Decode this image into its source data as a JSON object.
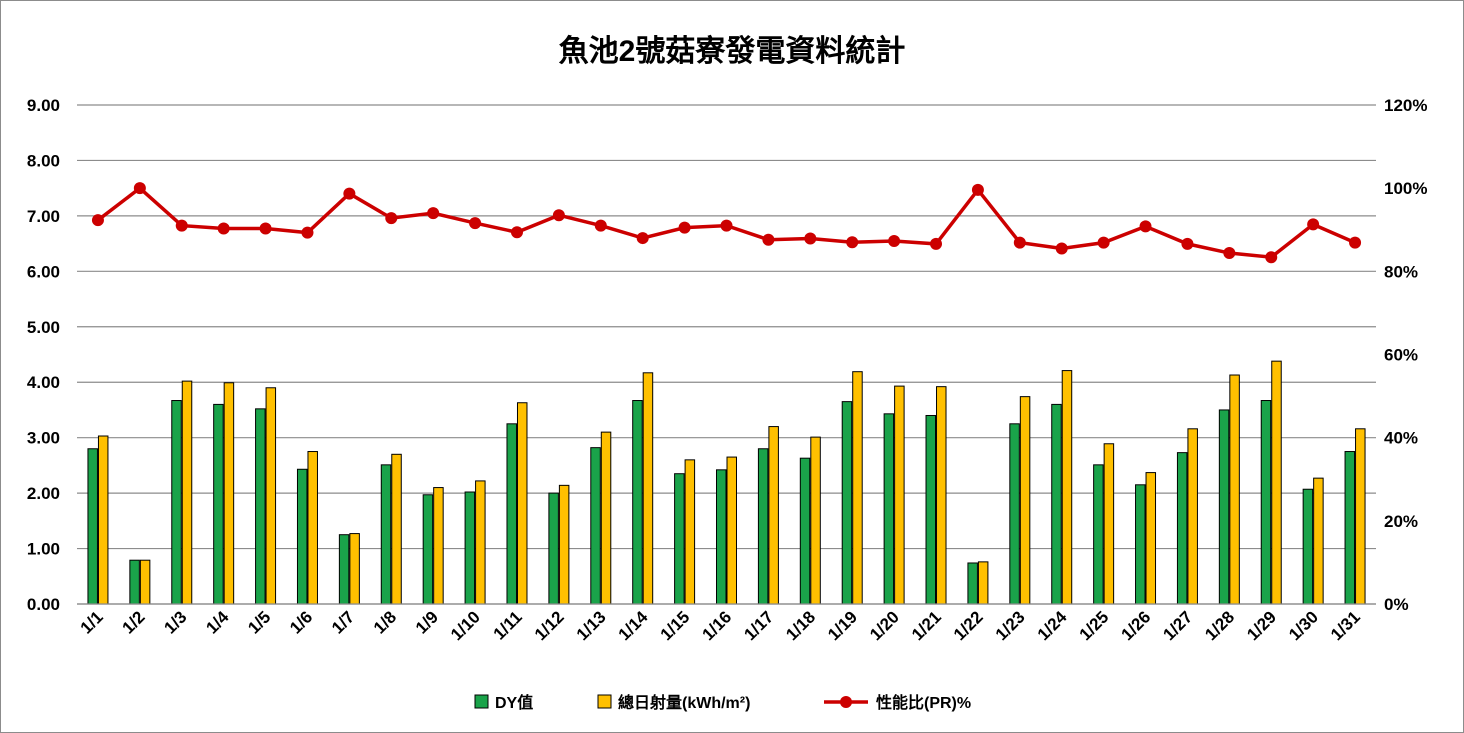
{
  "chart_data": {
    "type": "bar",
    "title": "魚池2號菇寮發電資料統計",
    "categories": [
      "1/1",
      "1/2",
      "1/3",
      "1/4",
      "1/5",
      "1/6",
      "1/7",
      "1/8",
      "1/9",
      "1/10",
      "1/11",
      "1/12",
      "1/13",
      "1/14",
      "1/15",
      "1/16",
      "1/17",
      "1/18",
      "1/19",
      "1/20",
      "1/21",
      "1/22",
      "1/23",
      "1/24",
      "1/25",
      "1/26",
      "1/27",
      "1/28",
      "1/29",
      "1/30",
      "1/31"
    ],
    "series": [
      {
        "name": "DY值",
        "type": "bar",
        "axis": "left",
        "color": "#1aa34a",
        "values": [
          2.8,
          0.79,
          3.67,
          3.6,
          3.52,
          2.43,
          1.25,
          2.51,
          1.97,
          2.02,
          3.25,
          2.0,
          2.82,
          3.67,
          2.35,
          2.42,
          2.8,
          2.63,
          3.65,
          3.43,
          3.4,
          0.74,
          3.25,
          3.6,
          2.51,
          2.15,
          2.73,
          3.5,
          3.67,
          2.07,
          2.75
        ]
      },
      {
        "name": "總日射量(kWh/m²)",
        "type": "bar",
        "axis": "left",
        "color": "#ffc000",
        "values": [
          3.03,
          0.79,
          4.02,
          3.99,
          3.9,
          2.75,
          1.27,
          2.7,
          2.1,
          2.22,
          3.63,
          2.14,
          3.1,
          4.17,
          2.6,
          2.65,
          3.2,
          3.01,
          4.19,
          3.93,
          3.92,
          0.76,
          3.74,
          4.21,
          2.89,
          2.37,
          3.16,
          4.13,
          4.38,
          2.27,
          3.16
        ]
      },
      {
        "name": "性能比(PR)%",
        "type": "line",
        "axis": "right",
        "color": "#cc0000",
        "values": [
          92.3,
          100.0,
          91.0,
          90.3,
          90.3,
          89.3,
          98.7,
          92.8,
          94.0,
          91.6,
          89.4,
          93.5,
          91.0,
          88.0,
          90.5,
          91.0,
          87.6,
          87.9,
          87.0,
          87.3,
          86.6,
          99.6,
          86.9,
          85.5,
          86.9,
          90.8,
          86.6,
          84.4,
          83.4,
          91.3,
          86.9
        ]
      }
    ],
    "ylim": [
      0,
      9
    ],
    "y_ticks": [
      "9.00",
      "8.00",
      "7.00",
      "6.00",
      "5.00",
      "4.00",
      "3.00",
      "2.00",
      "1.00",
      "0.00"
    ],
    "y2lim": [
      0,
      120
    ],
    "y2_ticks": [
      "120%",
      "100%",
      "80%",
      "60%",
      "40%",
      "20%",
      "0%"
    ],
    "grid": true,
    "legend_position": "bottom"
  }
}
